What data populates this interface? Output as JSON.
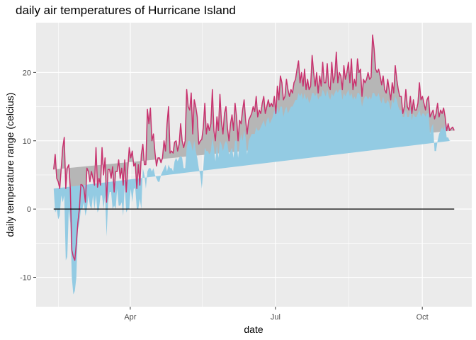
{
  "chart_data": {
    "type": "area",
    "title": "daily air temperatures of Hurricane Island",
    "xlabel": "date",
    "ylabel": "daily temperature range (celcius)",
    "x_start": "2019-02-12",
    "x_end": "2019-10-21",
    "xlim": [
      "2019-02-01",
      "2019-11-01"
    ],
    "ylim": [
      -14.3,
      27.3
    ],
    "x_ticks": [
      {
        "date": "2019-04-01",
        "label": "Apr"
      },
      {
        "date": "2019-07-01",
        "label": "Jul"
      },
      {
        "date": "2019-10-01",
        "label": "Oct"
      }
    ],
    "x_minor_ticks": [
      "2019-02-15",
      "2019-05-16",
      "2019-08-16"
    ],
    "y_ticks": [
      -10,
      0,
      10,
      20
    ],
    "y_tick_labels": [
      "-10",
      "0",
      "10",
      "20"
    ],
    "reference_line": 0,
    "grid": true,
    "series": [
      {
        "color": "#c8326e",
        "values": [
          5.8,
          8,
          4.5,
          4,
          3,
          6,
          9,
          10.5,
          3,
          6,
          6.5,
          3,
          -6,
          -7,
          -7.5,
          -5,
          -2,
          0,
          3.6,
          3.5,
          3,
          1,
          6,
          5.5,
          4,
          5.5,
          4.5,
          3.5,
          9,
          3.2,
          4.5,
          3.5,
          9,
          5,
          7.5,
          1,
          5.8,
          5.8,
          4.5,
          6.2,
          2.5,
          5.5,
          5.5,
          7.2,
          4.5,
          6,
          3.5,
          7.2,
          2.5,
          5.8,
          9,
          7.5,
          8.5,
          6.3,
          6.7,
          3,
          6.5,
          3.5,
          8,
          9.5,
          6.5,
          6.5,
          14.6,
          12.5,
          14.8,
          10,
          11,
          8.3,
          6.3,
          7.5,
          7.5,
          6.8,
          7.5,
          10,
          8.5,
          12.5,
          15,
          8.2,
          8.5,
          8.2,
          9.8,
          10,
          8.5,
          9.5,
          12.5,
          10,
          9,
          10,
          17.5,
          15,
          14.5,
          17,
          11,
          16,
          15,
          13.5,
          9.5,
          10,
          10.2,
          12,
          15.5,
          11,
          12.5,
          11.5,
          12.5,
          17.5,
          11.5,
          10,
          13.5,
          11.5,
          16.8,
          12.8,
          11,
          14,
          15,
          11.8,
          10,
          12.5,
          13.8,
          11.5,
          15.5,
          13.5,
          10,
          13,
          12.5,
          14.5,
          16,
          13,
          11,
          13,
          13.5,
          14,
          15,
          14.3,
          16.5,
          13.5,
          14.5,
          14,
          15.5,
          16.5,
          14,
          15,
          16,
          15,
          15.5,
          15,
          16.5,
          14,
          18,
          16,
          19.5,
          18.5,
          16,
          16.5,
          19,
          17.5,
          16.5,
          17.5,
          17,
          18.5,
          19,
          20.5,
          21.7,
          18.5,
          20,
          18,
          20.5,
          17.5,
          19,
          17.5,
          18,
          22.5,
          20,
          18,
          20,
          17,
          19.5,
          18,
          21.5,
          18.5,
          18.5,
          21.3,
          18,
          17.5,
          21.5,
          18.5,
          19.5,
          23,
          18.5,
          20,
          19.5,
          17.5,
          21,
          19,
          20,
          21.5,
          18.5,
          22,
          17.5,
          19,
          18,
          22,
          20,
          20.5,
          16.5,
          19,
          18.5,
          19,
          20,
          19,
          19.3,
          25.5,
          23.5,
          20.5,
          20,
          20.5,
          19.5,
          18.2,
          19.5,
          17.5,
          17,
          19,
          17.5,
          16,
          18.5,
          17,
          21,
          19,
          17.5,
          16.5,
          16.5,
          14,
          15,
          17.5,
          15,
          14.5,
          16.5,
          14,
          16,
          14.5,
          14.5,
          15.5,
          18.5,
          16,
          16.5,
          15.5,
          14.5,
          16,
          16.5,
          13.5,
          14,
          14.5,
          13.2,
          14,
          15.5,
          13.5,
          14.5,
          14,
          14.8,
          13.5,
          11.5,
          12.5,
          11.5,
          11.8,
          12,
          11.5
        ]
      },
      {
        "color": "#93cbe3",
        "values": [
          3,
          -0.5,
          0,
          -1.5,
          -1,
          2,
          1,
          2,
          -7.5,
          -7,
          0,
          -2,
          -10,
          -12.5,
          -12,
          -10,
          -3,
          -2,
          0,
          0,
          1,
          -1,
          0,
          2,
          0.5,
          0,
          2,
          0,
          2,
          -0.5,
          0,
          2,
          2,
          0,
          2,
          -4,
          1,
          2.5,
          2.5,
          0,
          0.5,
          0,
          3,
          0.5,
          0.5,
          1,
          -1,
          3.5,
          -0.5,
          0,
          0,
          3,
          1,
          3,
          3,
          0,
          0,
          1.5,
          0,
          6,
          5,
          3,
          5.5,
          6,
          6,
          5.5,
          6,
          5,
          4.5,
          4,
          4,
          5,
          5.5,
          6,
          6.5,
          5.5,
          6.5,
          6,
          6,
          5.5,
          7,
          7.5,
          7,
          7.5,
          7.8,
          7.5,
          6,
          6,
          9,
          10,
          10,
          9.5,
          8.5,
          10,
          8.5,
          7.5,
          6,
          5,
          3,
          6,
          9,
          8.5,
          8.5,
          8,
          8.5,
          10.5,
          9,
          7,
          9.5,
          7.5,
          10,
          9.5,
          8.5,
          9.5,
          10,
          9.5,
          8,
          8.5,
          9,
          7.5,
          10,
          10,
          7.5,
          9.5,
          11,
          10,
          11.5,
          10.5,
          8,
          10,
          10.5,
          11,
          11,
          11,
          12,
          11.5,
          11.5,
          12,
          12.5,
          13,
          12,
          13,
          13.5,
          12.5,
          13,
          13.5,
          14.5,
          13.5,
          15,
          14,
          15,
          15,
          13.5,
          14.5,
          15,
          14,
          14.5,
          15,
          15,
          15.5,
          16,
          16,
          17,
          16.5,
          17,
          16,
          17,
          16,
          16.5,
          15.5,
          16,
          17,
          17,
          16.5,
          17,
          16,
          16.5,
          16.5,
          17.5,
          17,
          16.5,
          17.5,
          16.5,
          16,
          17,
          16.5,
          17,
          17.5,
          17,
          17.5,
          17.5,
          16,
          17,
          16.5,
          17,
          17.5,
          16.5,
          17,
          16,
          16.5,
          16,
          17,
          17,
          16.5,
          15,
          16,
          16.5,
          16.5,
          16,
          16.5,
          16,
          17,
          17,
          16.5,
          16.5,
          17,
          16,
          15.5,
          16.5,
          15.5,
          15.5,
          16,
          15.5,
          14.5,
          16,
          15.5,
          16.5,
          16,
          15,
          14.5,
          14.5,
          13.5,
          13.5,
          14.5,
          13.5,
          13.5,
          14.5,
          13,
          14,
          13.5,
          13.5,
          14,
          14.5,
          13.5,
          14,
          14,
          13.5,
          14,
          14,
          11,
          12,
          12.5,
          8.5,
          8.5,
          10,
          11,
          11.5,
          12,
          11.5,
          12.5,
          10.5,
          10.5,
          10,
          10
        ]
      }
    ]
  }
}
